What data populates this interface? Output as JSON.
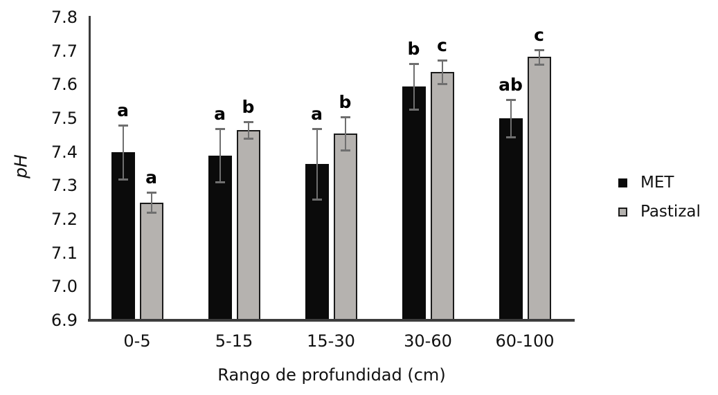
{
  "chart_data": {
    "type": "bar",
    "title": "",
    "xlabel": "Rango de profundidad (cm)",
    "ylabel": "pH",
    "categories": [
      "0-5",
      "5-15",
      "15-30",
      "30-60",
      "60-100"
    ],
    "series": [
      {
        "name": "MET",
        "color": "#0b0b0b",
        "border": "#0b0b0b",
        "values": [
          7.4,
          7.39,
          7.365,
          7.595,
          7.5
        ],
        "errors": [
          0.08,
          0.08,
          0.105,
          0.068,
          0.055
        ],
        "letters": [
          "a",
          "a",
          "a",
          "b",
          "ab"
        ]
      },
      {
        "name": "Pastizal",
        "color": "#b5b2af",
        "border": "#1a1a1a",
        "values": [
          7.25,
          7.465,
          7.455,
          7.637,
          7.682
        ],
        "errors": [
          0.03,
          0.025,
          0.05,
          0.035,
          0.022
        ],
        "letters": [
          "a",
          "b",
          "b",
          "c",
          "c"
        ]
      }
    ],
    "ylim": [
      6.9,
      7.8
    ],
    "yticks": [
      6.9,
      7.0,
      7.1,
      7.2,
      7.3,
      7.4,
      7.5,
      7.6,
      7.7,
      7.8
    ],
    "legend_position": "right",
    "grid": false,
    "error_bar_color": "#6f6f6f"
  }
}
